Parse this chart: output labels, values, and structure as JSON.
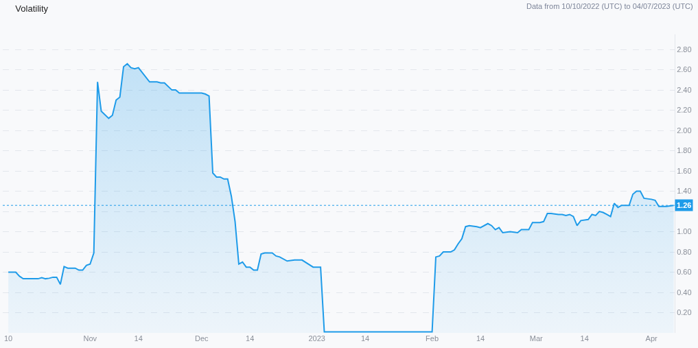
{
  "chart_data": {
    "type": "area",
    "title": "Volatility",
    "annotations": [
      "Data from 10/10/2022 (UTC) to 04/07/2023 (UTC)"
    ],
    "x": [
      "2022-10-10",
      "2022-10-12",
      "2022-10-13",
      "2022-10-14",
      "2022-10-18",
      "2022-10-19",
      "2022-10-20",
      "2022-10-21",
      "2022-10-22",
      "2022-10-23",
      "2022-10-24",
      "2022-10-25",
      "2022-10-26",
      "2022-10-28",
      "2022-10-29",
      "2022-10-30",
      "2022-10-31",
      "2022-11-01",
      "2022-11-02",
      "2022-11-03",
      "2022-11-04",
      "2022-11-06",
      "2022-11-07",
      "2022-11-08",
      "2022-11-09",
      "2022-11-10",
      "2022-11-11",
      "2022-11-12",
      "2022-11-13",
      "2022-11-14",
      "2022-11-17",
      "2022-11-19",
      "2022-11-20",
      "2022-11-21",
      "2022-11-23",
      "2022-11-24",
      "2022-11-25",
      "2022-12-01",
      "2022-12-02",
      "2022-12-03",
      "2022-12-04",
      "2022-12-05",
      "2022-12-06",
      "2022-12-07",
      "2022-12-08",
      "2022-12-09",
      "2022-12-10",
      "2022-12-11",
      "2022-12-12",
      "2022-12-13",
      "2022-12-14",
      "2022-12-15",
      "2022-12-16",
      "2022-12-17",
      "2022-12-18",
      "2022-12-19",
      "2022-12-20",
      "2022-12-21",
      "2022-12-22",
      "2022-12-24",
      "2022-12-26",
      "2022-12-28",
      "2022-12-31",
      "2023-01-02",
      "2023-01-03",
      "2023-01-06",
      "2023-01-11",
      "2023-01-17",
      "2023-01-23",
      "2023-02-01",
      "2023-02-02",
      "2023-02-03",
      "2023-02-04",
      "2023-02-06",
      "2023-02-07",
      "2023-02-08",
      "2023-02-09",
      "2023-02-10",
      "2023-02-11",
      "2023-02-13",
      "2023-02-14",
      "2023-02-16",
      "2023-02-17",
      "2023-02-18",
      "2023-02-19",
      "2023-02-20",
      "2023-02-22",
      "2023-02-24",
      "2023-02-25",
      "2023-02-26",
      "2023-02-27",
      "2023-02-28",
      "2023-03-02",
      "2023-03-03",
      "2023-03-04",
      "2023-03-05",
      "2023-03-07",
      "2023-03-08",
      "2023-03-09",
      "2023-03-10",
      "2023-03-11",
      "2023-03-12",
      "2023-03-13",
      "2023-03-15",
      "2023-03-16",
      "2023-03-17",
      "2023-03-18",
      "2023-03-19",
      "2023-03-20",
      "2023-03-21",
      "2023-03-22",
      "2023-03-23",
      "2023-03-24",
      "2023-03-26",
      "2023-03-27",
      "2023-03-28",
      "2023-03-29",
      "2023-03-30",
      "2023-04-01",
      "2023-04-02",
      "2023-04-03",
      "2023-04-05",
      "2023-04-07"
    ],
    "series": [
      {
        "color": "#1e9be9",
        "values": [
          0.6,
          0.6,
          0.56,
          0.535,
          0.535,
          0.545,
          0.535,
          0.54,
          0.55,
          0.55,
          0.48,
          0.655,
          0.64,
          0.64,
          0.62,
          0.62,
          0.667,
          0.68,
          0.79,
          2.48,
          2.19,
          2.12,
          2.15,
          2.3,
          2.33,
          2.63,
          2.66,
          2.62,
          2.61,
          2.62,
          2.48,
          2.48,
          2.47,
          2.47,
          2.4,
          2.4,
          2.37,
          2.37,
          2.36,
          2.34,
          1.58,
          1.54,
          1.54,
          1.52,
          1.52,
          1.35,
          1.1,
          0.68,
          0.7,
          0.65,
          0.65,
          0.62,
          0.62,
          0.78,
          0.79,
          0.79,
          0.79,
          0.76,
          0.75,
          0.71,
          0.72,
          0.72,
          0.65,
          0.65,
          0.01,
          0.01,
          0.01,
          0.01,
          0.01,
          0.01,
          0.75,
          0.76,
          0.8,
          0.8,
          0.82,
          0.88,
          0.93,
          1.05,
          1.06,
          1.05,
          1.04,
          1.08,
          1.06,
          1.02,
          1.04,
          0.99,
          1.0,
          0.99,
          1.02,
          1.02,
          1.02,
          1.09,
          1.09,
          1.1,
          1.18,
          1.18,
          1.17,
          1.17,
          1.16,
          1.17,
          1.15,
          1.06,
          1.11,
          1.12,
          1.17,
          1.16,
          1.2,
          1.19,
          1.17,
          1.15,
          1.28,
          1.24,
          1.26,
          1.26,
          1.37,
          1.4,
          1.4,
          1.33,
          1.32,
          1.31,
          1.25,
          1.25,
          1.26
        ]
      }
    ],
    "xlim": [
      "2022-10-08T12:00",
      "2023-04-07T06:00"
    ],
    "xticks": [
      {
        "value": "2022-10-10",
        "label": "10"
      },
      {
        "value": "2022-11-01",
        "label": "Nov"
      },
      {
        "value": "2022-11-14",
        "label": "14"
      },
      {
        "value": "2022-12-01",
        "label": "Dec"
      },
      {
        "value": "2022-12-14",
        "label": "14"
      },
      {
        "value": "2023-01-01",
        "label": "2023"
      },
      {
        "value": "2023-01-14",
        "label": "14"
      },
      {
        "value": "2023-02-01",
        "label": "Feb"
      },
      {
        "value": "2023-02-14",
        "label": "14"
      },
      {
        "value": "2023-03-01",
        "label": "Mar"
      },
      {
        "value": "2023-03-14",
        "label": "14"
      },
      {
        "value": "2023-04-01",
        "label": "Apr"
      }
    ],
    "ylim": [
      0,
      2.95
    ],
    "yticks": [
      {
        "value": 0.2,
        "label": "0.20"
      },
      {
        "value": 0.4,
        "label": "0.40"
      },
      {
        "value": 0.6,
        "label": "0.60"
      },
      {
        "value": 0.8,
        "label": "0.80"
      },
      {
        "value": 1.0,
        "label": "1.00"
      },
      {
        "value": 1.2,
        "label": null
      },
      {
        "value": 1.4,
        "label": "1.40"
      },
      {
        "value": 1.6,
        "label": "1.60"
      },
      {
        "value": 1.8,
        "label": "1.80"
      },
      {
        "value": 2.0,
        "label": "2.00"
      },
      {
        "value": 2.2,
        "label": "2.20"
      },
      {
        "value": 2.4,
        "label": "2.40"
      },
      {
        "value": 2.6,
        "label": "2.60"
      },
      {
        "value": 2.8,
        "label": "2.80"
      }
    ],
    "ref_lines": [
      {
        "axis": "y",
        "value": 1.26,
        "label": "1.26",
        "color": "#1e9be9",
        "line_style": "dotted"
      }
    ],
    "grid": "y",
    "marker": "none",
    "line_style": "solid"
  }
}
